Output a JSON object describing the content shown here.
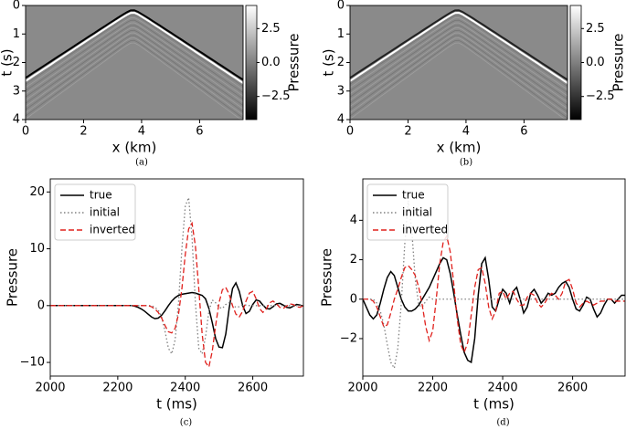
{
  "chart_data": [
    {
      "type": "image",
      "caption": "(a)",
      "xlabel": "x (km)",
      "ylabel": "t (s)",
      "xlim": [
        0,
        7.5
      ],
      "xticks": [
        0,
        2,
        4,
        6
      ],
      "ylim": [
        4,
        0
      ],
      "yticks": [
        0,
        1,
        2,
        3,
        4
      ],
      "colorbar_label": "Pressure",
      "colorbar_lim": [
        -4.2,
        4.2
      ],
      "colorbar_ticks": [
        2.5,
        {
          "value": 0,
          "label": "0.0"
        },
        {
          "value": -2.5,
          "label": "−2.5"
        }
      ]
    },
    {
      "type": "image",
      "caption": "(b)",
      "xlabel": "x (km)",
      "ylabel": "t (s)",
      "xlim": [
        0,
        7.5
      ],
      "xticks": [
        0,
        2,
        4,
        6
      ],
      "ylim": [
        4,
        0
      ],
      "yticks": [
        0,
        1,
        2,
        3,
        4
      ],
      "colorbar_label": "Pressure",
      "colorbar_lim": [
        -4.2,
        4.2
      ],
      "colorbar_ticks": [
        2.5,
        {
          "value": 0,
          "label": "0.0"
        },
        {
          "value": -2.5,
          "label": "−2.5"
        }
      ]
    },
    {
      "type": "line",
      "caption": "(c)",
      "xlabel": "t (ms)",
      "ylabel": "Pressure",
      "legend": "upper left",
      "xlim": [
        2000,
        2750
      ],
      "xticks": [
        2000,
        2200,
        2400,
        2600
      ],
      "ylim": [
        -12.4,
        22.3
      ],
      "yticks": [
        {
          "value": -10,
          "label": "−10"
        },
        0,
        10,
        20
      ],
      "x": [
        2000,
        2010,
        2020,
        2030,
        2040,
        2050,
        2060,
        2070,
        2080,
        2090,
        2100,
        2110,
        2120,
        2130,
        2140,
        2150,
        2160,
        2170,
        2180,
        2190,
        2200,
        2210,
        2220,
        2230,
        2240,
        2250,
        2260,
        2270,
        2280,
        2290,
        2300,
        2310,
        2320,
        2330,
        2340,
        2350,
        2360,
        2370,
        2380,
        2390,
        2400,
        2410,
        2420,
        2430,
        2440,
        2450,
        2460,
        2470,
        2480,
        2490,
        2500,
        2510,
        2520,
        2530,
        2540,
        2550,
        2560,
        2570,
        2580,
        2590,
        2600,
        2610,
        2620,
        2630,
        2640,
        2650,
        2660,
        2670,
        2680,
        2690,
        2700,
        2710,
        2720,
        2730,
        2740,
        2750
      ],
      "series": [
        {
          "name": "true",
          "color": "#000000",
          "linestyle": "solid",
          "values": [
            0,
            0,
            0,
            0,
            0,
            0,
            0,
            0,
            0,
            0,
            0,
            0,
            0,
            0,
            0,
            0,
            0,
            0,
            0,
            0,
            0,
            0,
            0,
            0,
            0,
            -0.1,
            -0.3,
            -0.6,
            -1.0,
            -1.5,
            -2.0,
            -2.3,
            -2.2,
            -1.7,
            -0.9,
            0.0,
            0.8,
            1.4,
            1.8,
            2.0,
            2.1,
            2.2,
            2.3,
            2.2,
            2.0,
            1.8,
            1.2,
            -0.5,
            -3.0,
            -5.8,
            -7.3,
            -7.4,
            -5.0,
            -0.5,
            3.0,
            4.0,
            2.5,
            0.0,
            -1.4,
            -1.0,
            0.2,
            1.0,
            0.8,
            0.1,
            -0.5,
            -0.6,
            -0.2,
            0.3,
            0.4,
            0.1,
            -0.3,
            -0.4,
            -0.1,
            0.2,
            0.1,
            -0.1
          ]
        },
        {
          "name": "initial",
          "color": "#808080",
          "linestyle": "dotted",
          "values": [
            0,
            0,
            0,
            0,
            0,
            0,
            0,
            0,
            0,
            0,
            0,
            0,
            0,
            0,
            0,
            0,
            0,
            0,
            0,
            0,
            0,
            0,
            0,
            0,
            0,
            0,
            0,
            0,
            0,
            0,
            0,
            -0.3,
            -0.8,
            -2.0,
            -4.5,
            -7.5,
            -8.5,
            -6.0,
            0.5,
            10.0,
            17.5,
            19.0,
            12.0,
            0.5,
            -7.5,
            -8.5,
            -5.5,
            -1.0,
            1.0,
            0.5,
            -0.3,
            -0.5,
            0.2,
            0.5,
            0.1,
            -0.3,
            -0.2,
            0.1,
            0.1,
            0,
            0,
            0,
            0,
            0,
            0,
            0,
            0,
            0,
            0,
            0,
            0,
            0,
            0,
            0,
            0,
            0
          ]
        },
        {
          "name": "inverted",
          "color": "#e0201c",
          "linestyle": "dashed",
          "values": [
            0,
            0,
            0,
            0,
            0,
            0,
            0,
            0,
            0,
            0,
            0,
            0,
            0,
            0,
            0,
            0,
            0,
            0,
            0,
            0,
            0,
            0,
            0,
            0,
            0,
            0,
            0,
            0,
            0,
            0,
            -0.2,
            -0.6,
            -1.2,
            -2.2,
            -3.5,
            -4.6,
            -4.8,
            -4.0,
            -1.5,
            3.0,
            9.0,
            13.5,
            14.5,
            10.5,
            3.0,
            -5.0,
            -10.0,
            -10.8,
            -8.0,
            -3.5,
            0.5,
            2.8,
            3.2,
            2.0,
            0.0,
            -1.5,
            -2.0,
            -1.0,
            0.8,
            2.2,
            2.5,
            1.2,
            -0.5,
            -1.2,
            -0.6,
            0.5,
            0.8,
            0.3,
            -0.3,
            -0.5,
            -0.1,
            0.3,
            0.2,
            -0.2,
            -0.3,
            0.0
          ]
        }
      ]
    },
    {
      "type": "line",
      "caption": "(d)",
      "xlabel": "t (ms)",
      "ylabel": "Pressure",
      "legend": "upper left",
      "xlim": [
        2000,
        2750
      ],
      "xticks": [
        2000,
        2200,
        2400,
        2600
      ],
      "ylim": [
        -3.9,
        6.1
      ],
      "yticks": [
        {
          "value": -2,
          "label": "−2"
        },
        0,
        2,
        4
      ],
      "x": [
        2000,
        2010,
        2020,
        2030,
        2040,
        2050,
        2060,
        2070,
        2080,
        2090,
        2100,
        2110,
        2120,
        2130,
        2140,
        2150,
        2160,
        2170,
        2180,
        2190,
        2200,
        2210,
        2220,
        2230,
        2240,
        2250,
        2260,
        2270,
        2280,
        2290,
        2300,
        2310,
        2320,
        2330,
        2340,
        2350,
        2360,
        2370,
        2380,
        2390,
        2400,
        2410,
        2420,
        2430,
        2440,
        2450,
        2460,
        2470,
        2480,
        2490,
        2500,
        2510,
        2520,
        2530,
        2540,
        2550,
        2560,
        2570,
        2580,
        2590,
        2600,
        2610,
        2620,
        2630,
        2640,
        2650,
        2660,
        2670,
        2680,
        2690,
        2700,
        2710,
        2720,
        2730,
        2740,
        2750
      ],
      "series": [
        {
          "name": "true",
          "color": "#000000",
          "linestyle": "solid",
          "values": [
            0,
            -0.4,
            -0.8,
            -1.0,
            -0.8,
            -0.2,
            0.5,
            1.1,
            1.4,
            1.2,
            0.6,
            0.0,
            -0.4,
            -0.6,
            -0.6,
            -0.5,
            -0.3,
            0.0,
            0.3,
            0.6,
            1.0,
            1.4,
            1.8,
            2.1,
            2.0,
            1.3,
            0.3,
            -0.8,
            -1.8,
            -2.7,
            -3.1,
            -3.2,
            -2.0,
            0.2,
            1.8,
            2.1,
            1.0,
            -0.4,
            -0.6,
            0.0,
            0.5,
            0.3,
            -0.2,
            0.4,
            0.6,
            0.0,
            -0.7,
            -0.4,
            0.3,
            0.5,
            0.2,
            -0.2,
            0.0,
            0.3,
            0.2,
            0.3,
            0.6,
            0.8,
            0.9,
            0.6,
            0.0,
            -0.5,
            -0.6,
            -0.3,
            0.1,
            0.0,
            -0.5,
            -0.9,
            -0.7,
            -0.3,
            0.0,
            0.0,
            -0.2,
            0.0,
            0.2,
            0.2
          ]
        },
        {
          "name": "initial",
          "color": "#808080",
          "linestyle": "dotted",
          "values": [
            0,
            0,
            0,
            0,
            -0.2,
            -0.6,
            -1.3,
            -2.3,
            -3.2,
            -3.5,
            -2.5,
            -0.2,
            2.8,
            5.0,
            3.5,
            1.0,
            -0.3,
            -0.4,
            -0.1,
            0.1,
            0,
            0,
            0,
            0,
            0,
            0,
            0,
            0,
            0,
            0,
            0,
            0,
            0,
            0,
            0,
            0,
            0,
            0,
            0,
            0,
            0,
            0,
            0,
            0,
            0,
            0,
            0,
            0,
            0,
            0,
            0,
            0,
            0,
            0,
            0,
            0,
            0,
            0,
            0,
            0,
            0,
            0,
            0,
            0,
            0,
            0,
            0,
            0,
            0,
            0,
            0,
            0,
            0,
            0,
            0,
            0
          ]
        },
        {
          "name": "inverted",
          "color": "#e0201c",
          "linestyle": "dashed",
          "values": [
            0,
            0,
            0,
            -0.1,
            -0.4,
            -0.9,
            -1.4,
            -1.3,
            -0.7,
            0.0,
            0.5,
            1.1,
            1.6,
            1.7,
            1.5,
            1.2,
            0.6,
            -0.3,
            -1.4,
            -2.1,
            -1.6,
            0.0,
            1.8,
            2.9,
            3.2,
            2.4,
            0.8,
            -1.0,
            -2.3,
            -2.7,
            -2.2,
            -0.8,
            0.6,
            1.5,
            1.6,
            0.8,
            -0.4,
            -1.0,
            -0.6,
            0.3,
            0.4,
            0.0,
            0.3,
            0.4,
            0.0,
            -0.3,
            -0.3,
            0.1,
            0.3,
            0.2,
            -0.2,
            -0.4,
            -0.2,
            0.1,
            0.3,
            0.2,
            0.0,
            0.3,
            0.9,
            1.0,
            0.5,
            -0.2,
            -0.4,
            -0.2,
            -0.1,
            -0.2,
            -0.3,
            -0.2,
            -0.1,
            -0.1,
            0.0,
            0.0,
            -0.1,
            -0.1,
            -0.1,
            -0.1
          ]
        }
      ]
    }
  ]
}
